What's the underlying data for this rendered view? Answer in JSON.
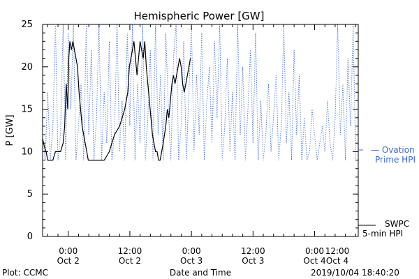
{
  "chart_data": {
    "type": "line",
    "title": "Hemispheric Power [GW]",
    "ylabel": "P [GW]",
    "xlabel": "Date and Time",
    "ylim": [
      0,
      25
    ],
    "xlim_hours": [
      -5,
      56.5
    ],
    "y_ticks": [
      0,
      5,
      10,
      15,
      20,
      25
    ],
    "x_ticks": [
      {
        "hour": 0,
        "time": "0:00",
        "date": "Oct 2"
      },
      {
        "hour": 12,
        "time": "12:00",
        "date": "Oct 2"
      },
      {
        "hour": 24,
        "time": "0:00",
        "date": "Oct 3"
      },
      {
        "hour": 36,
        "time": "12:00",
        "date": "Oct 3"
      },
      {
        "hour": 48,
        "time": "0:00",
        "date": "Oct 4"
      },
      {
        "hour": 60,
        "time": "12:00",
        "date": "Oct 4"
      }
    ],
    "grid": false,
    "legend": "right",
    "series": [
      {
        "name": "SWPC 5-min HPI",
        "legend_lines": [
          "SWPC",
          "5-min HPI"
        ],
        "style": "solid",
        "color": "#000000",
        "x_hours": [
          -5,
          -4.6,
          -4.3,
          -4,
          -3.5,
          -3,
          -2.5,
          -2,
          -1.5,
          -1,
          -0.7,
          -0.4,
          -0.1,
          0.1,
          0.3,
          0.6,
          0.9,
          1.2,
          1.5,
          1.8,
          2.1,
          2.4,
          2.7,
          3,
          3.3,
          3.6,
          3.9,
          4.2,
          4.5,
          5,
          6,
          7,
          7.5,
          8,
          8.5,
          9,
          9.5,
          10,
          10.5,
          11,
          11.3,
          11.6,
          11.9,
          12.2,
          12.5,
          12.8,
          13.1,
          13.4,
          13.7,
          14,
          14.3,
          14.6,
          14.9,
          15.2,
          15.5,
          15.8,
          16.1,
          16.4,
          16.7,
          17,
          17.3,
          17.6,
          17.9,
          18.2,
          18.5,
          19,
          19.3,
          19.6,
          19.9,
          20.2,
          20.5,
          20.8,
          21.1,
          21.4,
          21.7,
          22,
          22.3,
          22.6,
          22.9,
          23.2,
          23.5,
          23.8
        ],
        "values": [
          11.5,
          10.5,
          10,
          9,
          9,
          9,
          10,
          10,
          10,
          11,
          13,
          18,
          15,
          21,
          23,
          22,
          23,
          22,
          21,
          20,
          17,
          15,
          13,
          12,
          11,
          10,
          9,
          9,
          9,
          9,
          9,
          9,
          9.5,
          10,
          11,
          12,
          12.5,
          13,
          14,
          15,
          16,
          17,
          20,
          21,
          22,
          23,
          21,
          19,
          21,
          23,
          22,
          21,
          23,
          20,
          18,
          16,
          14,
          12,
          11,
          10,
          10,
          9,
          9,
          10,
          11,
          13,
          15,
          14,
          16,
          18,
          19,
          18,
          19,
          20,
          21,
          20,
          18,
          17,
          18,
          19,
          20,
          21
        ],
        "note": "black line clipped at x_hours 23.8"
      },
      {
        "name": "Ovation Prime HPI",
        "legend_lines": [
          "— Ovation",
          "Prime HPI"
        ],
        "style": "dotted",
        "color": "#3a6bd6",
        "x_hours": [
          -5,
          -4.5,
          -4,
          -3.5,
          -3,
          -2.5,
          -2,
          -1.5,
          -1,
          -0.5,
          0,
          0.5,
          1,
          1.5,
          2,
          2.5,
          3,
          3.5,
          4,
          4.5,
          5,
          5.5,
          6,
          6.5,
          7,
          7.5,
          8,
          8.5,
          9,
          9.5,
          10,
          10.5,
          11,
          11.5,
          12,
          12.5,
          13,
          13.5,
          14,
          14.5,
          15,
          15.5,
          16,
          16.5,
          17,
          17.5,
          18,
          18.5,
          19,
          19.5,
          20,
          20.5,
          21,
          21.5,
          22,
          22.5,
          23,
          23.5,
          24,
          24.5,
          25,
          25.5,
          26,
          26.5,
          27,
          27.5,
          28,
          28.5,
          29,
          29.5,
          30,
          30.5,
          31,
          31.5,
          32,
          32.5,
          33,
          33.5,
          34,
          34.5,
          35,
          35.5,
          36,
          36.5,
          37,
          37.5,
          38,
          38.5,
          39,
          39.5,
          40,
          40.5,
          41,
          41.5,
          42,
          42.5,
          43,
          43.5,
          44,
          44.5,
          45,
          45.5,
          46,
          46.5,
          47,
          47.5,
          48,
          48.5,
          49,
          49.5,
          50,
          50.5,
          51,
          51.5,
          52,
          52.5,
          53,
          53.5,
          54,
          54.5,
          55,
          55.5,
          56
        ],
        "values": [
          12,
          9,
          17,
          9,
          13,
          25,
          9,
          12,
          25,
          9,
          24,
          15,
          25,
          9,
          13,
          18,
          9,
          25,
          12,
          22,
          9,
          14,
          25,
          9,
          17,
          11,
          23,
          9,
          12,
          25,
          10,
          16,
          9,
          24,
          13,
          25,
          9,
          18,
          11,
          25,
          9,
          14,
          22,
          9,
          25,
          12,
          19,
          9,
          24,
          15,
          9,
          21,
          25,
          9,
          13,
          23,
          9,
          17,
          25,
          10,
          19,
          12,
          24,
          9,
          16,
          20,
          11,
          23,
          14,
          25,
          9,
          13,
          21,
          10,
          17,
          9,
          25,
          12,
          20,
          9,
          15,
          22,
          11,
          24,
          9,
          16,
          9,
          12,
          18,
          10,
          14,
          19,
          9,
          13,
          25,
          11,
          17,
          9,
          22,
          12,
          19,
          9,
          14,
          9,
          10,
          15,
          12,
          9,
          11,
          13,
          10,
          16,
          11,
          9,
          14,
          25,
          12,
          18,
          9,
          21,
          13,
          25,
          9
        ],
        "note": "dotted oscillating series"
      }
    ]
  },
  "footer": {
    "left": "Plot: CCMC",
    "right": "2019/10/04 18:40:20"
  }
}
